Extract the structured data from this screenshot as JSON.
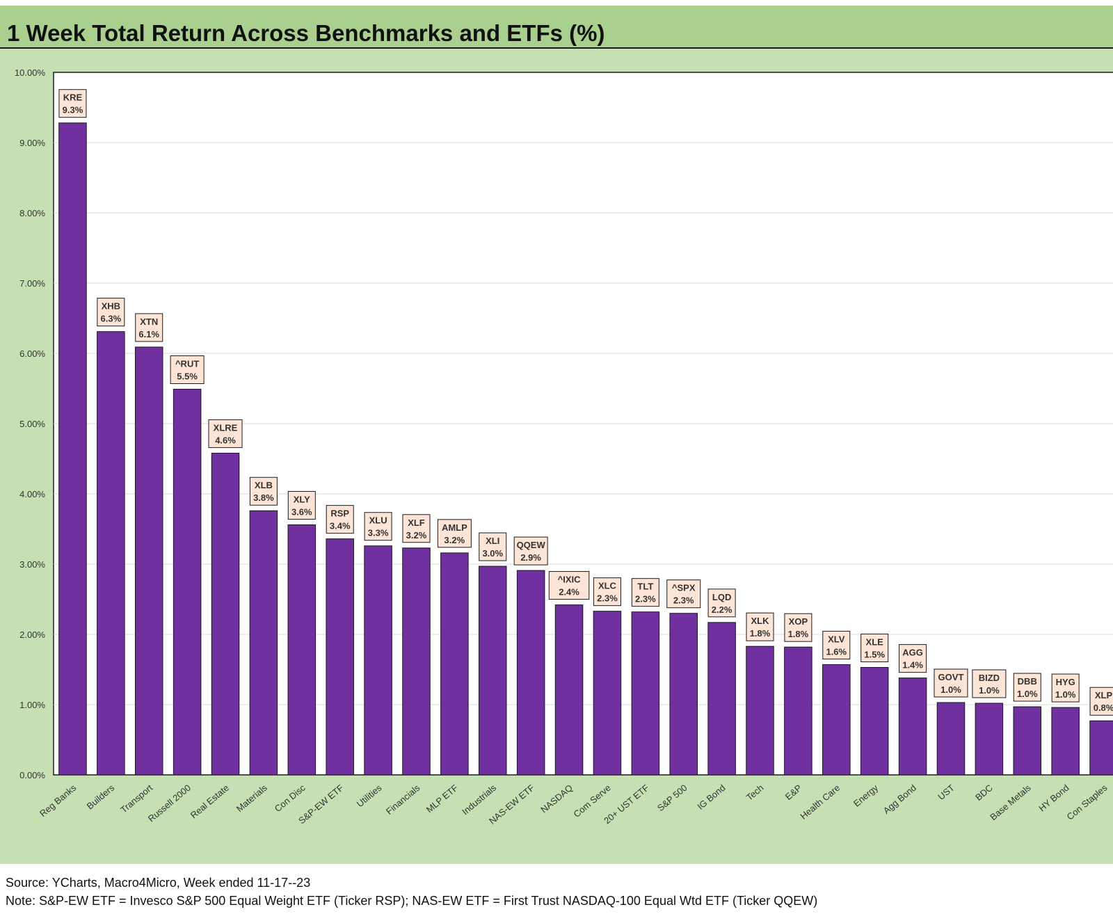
{
  "title": "1 Week Total Return Across Benchmarks and ETFs (%)",
  "footer": {
    "source": "Source: YCharts, Macro4Micro, Week ended 11-17--23",
    "note": "Note: S&P-EW ETF = Invesco S&P 500 Equal Weight ETF (Ticker RSP); NAS-EW ETF = First Trust NASDAQ-100 Equal Wtd ETF (Ticker QQEW)"
  },
  "colors": {
    "bar": "#7030a0",
    "label_box": "#fce4d6",
    "plot_bg": "#ffffff",
    "chart_bg": "#c6e0b4",
    "title_bg": "#a9d08e"
  },
  "chart_data": {
    "type": "bar",
    "title": "1 Week Total Return Across Benchmarks and ETFs (%)",
    "xlabel": "",
    "ylabel": "",
    "ylim": [
      0,
      10
    ],
    "yticks": [
      "0.00%",
      "1.00%",
      "2.00%",
      "3.00%",
      "4.00%",
      "5.00%",
      "6.00%",
      "7.00%",
      "8.00%",
      "9.00%",
      "10.00%"
    ],
    "grid": true,
    "legend": "none",
    "categories": [
      "Reg Banks",
      "Builders",
      "Transport",
      "Russell 2000",
      "Real Estate",
      "Materials",
      "Con Disc",
      "S&P-EW ETF",
      "Utilities",
      "Financials",
      "MLP ETF",
      "Industrials",
      "NAS-EW ETF",
      "NASDAQ",
      "Com Serve",
      "20+ UST ETF",
      "S&P 500",
      "IG Bond",
      "Tech",
      "E&P",
      "Health Care",
      "Energy",
      "Agg Bond",
      "UST",
      "BDC",
      "Base Metals",
      "HY Bond",
      "Con Staples"
    ],
    "tickers": [
      "KRE",
      "XHB",
      "XTN",
      "^RUT",
      "XLRE",
      "XLB",
      "XLY",
      "RSP",
      "XLU",
      "XLF",
      "AMLP",
      "XLI",
      "QQEW",
      "^IXIC",
      "XLC",
      "TLT",
      "^SPX",
      "LQD",
      "XLK",
      "XOP",
      "XLV",
      "XLE",
      "AGG",
      "GOVT",
      "BIZD",
      "DBB",
      "HYG",
      "XLP"
    ],
    "data_labels": [
      "9.3%",
      "6.3%",
      "6.1%",
      "5.5%",
      "4.6%",
      "3.8%",
      "3.6%",
      "3.4%",
      "3.3%",
      "3.2%",
      "3.2%",
      "3.0%",
      "2.9%",
      "2.4%",
      "2.3%",
      "2.3%",
      "2.3%",
      "2.2%",
      "1.8%",
      "1.8%",
      "1.6%",
      "1.5%",
      "1.4%",
      "1.0%",
      "1.0%",
      "1.0%",
      "1.0%",
      "0.8%"
    ],
    "values": [
      9.28,
      6.31,
      6.09,
      5.49,
      4.58,
      3.76,
      3.56,
      3.36,
      3.26,
      3.23,
      3.16,
      2.97,
      2.91,
      2.42,
      2.33,
      2.32,
      2.3,
      2.17,
      1.83,
      1.82,
      1.57,
      1.53,
      1.38,
      1.03,
      1.02,
      0.97,
      0.96,
      0.77
    ]
  }
}
